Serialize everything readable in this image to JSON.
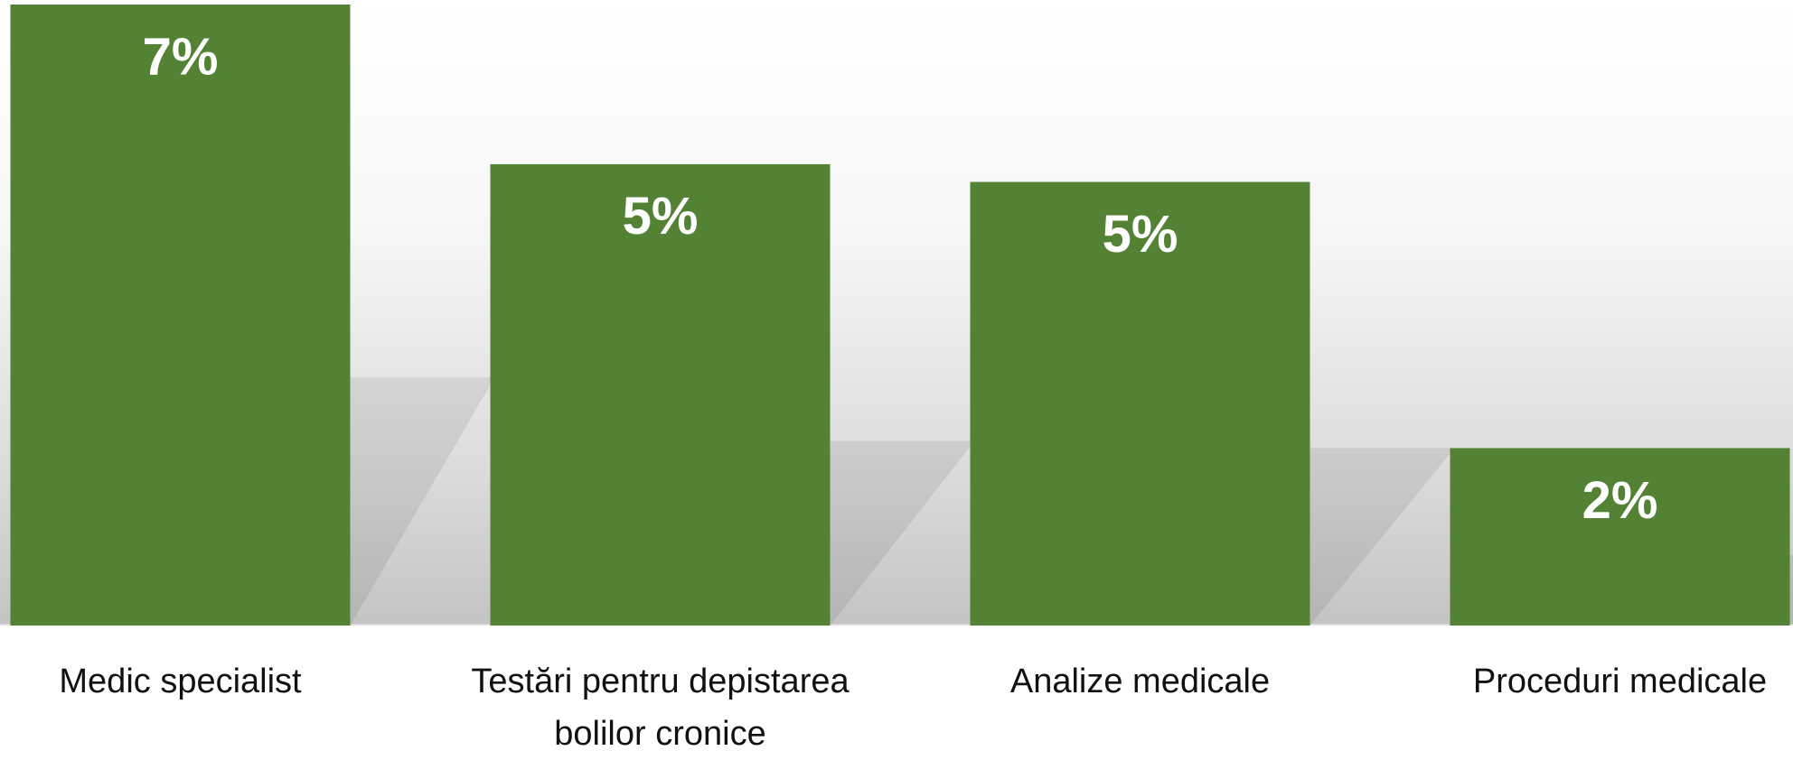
{
  "chart_data": {
    "type": "bar",
    "categories": [
      "Medic specialist",
      "Testări pentru depistarea bolilor cronice",
      "Analize medicale",
      "Proceduri medicale"
    ],
    "values": [
      7,
      5.2,
      5,
      2
    ],
    "value_labels": [
      "7%",
      "5%",
      "5%",
      "2%"
    ],
    "color": "#548235",
    "ylim": [
      0,
      7
    ]
  }
}
